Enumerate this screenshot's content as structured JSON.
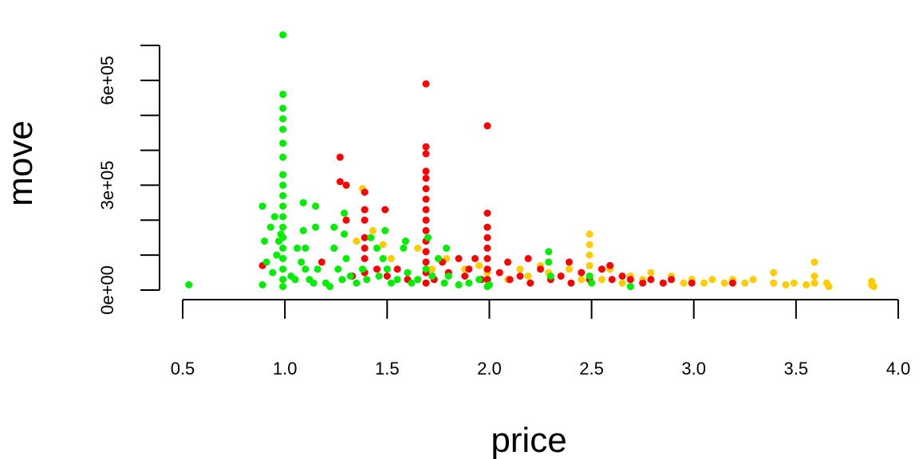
{
  "chart_data": {
    "type": "scatter",
    "title": "",
    "xlabel": "price",
    "ylabel": "move",
    "xlim": [
      0.5,
      4.0
    ],
    "ylim": [
      0,
      700000
    ],
    "x_ticks": [
      0.5,
      1.0,
      1.5,
      2.0,
      2.5,
      3.0,
      3.5,
      4.0
    ],
    "x_tick_labels": [
      "0.5",
      "1.0",
      "1.5",
      "2.0",
      "2.5",
      "3.0",
      "3.5",
      "4.0"
    ],
    "y_ticks": [
      0,
      100000,
      200000,
      300000,
      400000,
      500000,
      600000,
      700000
    ],
    "y_tick_labels": [
      "0e+00",
      "",
      "",
      "3e+05",
      "",
      "",
      "6e+05",
      ""
    ],
    "grid": false,
    "legend": "none",
    "colors": [
      "#00ee00",
      "#ff0000",
      "#ffcc00"
    ],
    "series": [
      {
        "color": "#00ee00",
        "points": [
          [
            0.53,
            15000
          ],
          [
            0.89,
            15000
          ],
          [
            0.89,
            240000
          ],
          [
            0.9,
            140000
          ],
          [
            0.91,
            80000
          ],
          [
            0.93,
            180000
          ],
          [
            0.94,
            50000
          ],
          [
            0.95,
            210000
          ],
          [
            0.96,
            100000
          ],
          [
            0.97,
            140000
          ],
          [
            0.98,
            160000
          ],
          [
            0.99,
            730000
          ],
          [
            0.99,
            560000
          ],
          [
            0.99,
            520000
          ],
          [
            0.99,
            490000
          ],
          [
            0.99,
            460000
          ],
          [
            0.99,
            420000
          ],
          [
            0.99,
            380000
          ],
          [
            0.99,
            330000
          ],
          [
            0.99,
            300000
          ],
          [
            0.99,
            270000
          ],
          [
            0.99,
            240000
          ],
          [
            0.99,
            210000
          ],
          [
            0.99,
            180000
          ],
          [
            0.99,
            150000
          ],
          [
            0.99,
            120000
          ],
          [
            0.99,
            90000
          ],
          [
            0.99,
            60000
          ],
          [
            0.99,
            30000
          ],
          [
            0.99,
            10000
          ],
          [
            1.03,
            40000
          ],
          [
            1.05,
            30000
          ],
          [
            1.06,
            120000
          ],
          [
            1.08,
            80000
          ],
          [
            1.09,
            170000
          ],
          [
            1.09,
            250000
          ],
          [
            1.1,
            120000
          ],
          [
            1.1,
            60000
          ],
          [
            1.12,
            30000
          ],
          [
            1.14,
            20000
          ],
          [
            1.15,
            240000
          ],
          [
            1.15,
            180000
          ],
          [
            1.16,
            60000
          ],
          [
            1.2,
            20000
          ],
          [
            1.22,
            10000
          ],
          [
            1.24,
            180000
          ],
          [
            1.24,
            120000
          ],
          [
            1.26,
            60000
          ],
          [
            1.28,
            30000
          ],
          [
            1.29,
            220000
          ],
          [
            1.29,
            160000
          ],
          [
            1.3,
            90000
          ],
          [
            1.32,
            40000
          ],
          [
            1.35,
            20000
          ],
          [
            1.38,
            60000
          ],
          [
            1.4,
            30000
          ],
          [
            1.42,
            150000
          ],
          [
            1.45,
            120000
          ],
          [
            1.46,
            40000
          ],
          [
            1.48,
            90000
          ],
          [
            1.49,
            170000
          ],
          [
            1.5,
            60000
          ],
          [
            1.52,
            20000
          ],
          [
            1.55,
            30000
          ],
          [
            1.58,
            120000
          ],
          [
            1.59,
            140000
          ],
          [
            1.6,
            50000
          ],
          [
            1.62,
            20000
          ],
          [
            1.65,
            30000
          ],
          [
            1.69,
            60000
          ],
          [
            1.7,
            150000
          ],
          [
            1.72,
            40000
          ],
          [
            1.75,
            90000
          ],
          [
            1.78,
            20000
          ],
          [
            1.79,
            120000
          ],
          [
            1.8,
            40000
          ],
          [
            1.85,
            15000
          ],
          [
            1.9,
            20000
          ],
          [
            1.95,
            30000
          ],
          [
            1.99,
            10000
          ],
          [
            2.0,
            15000
          ],
          [
            2.29,
            110000
          ],
          [
            2.29,
            80000
          ],
          [
            2.3,
            40000
          ],
          [
            2.49,
            40000
          ],
          [
            2.5,
            20000
          ],
          [
            2.69,
            10000
          ]
        ]
      },
      {
        "color": "#ff0000",
        "points": [
          [
            0.89,
            70000
          ],
          [
            1.18,
            80000
          ],
          [
            1.27,
            380000
          ],
          [
            1.27,
            310000
          ],
          [
            1.3,
            300000
          ],
          [
            1.3,
            200000
          ],
          [
            1.33,
            40000
          ],
          [
            1.39,
            280000
          ],
          [
            1.39,
            230000
          ],
          [
            1.39,
            200000
          ],
          [
            1.39,
            150000
          ],
          [
            1.39,
            120000
          ],
          [
            1.39,
            90000
          ],
          [
            1.39,
            50000
          ],
          [
            1.45,
            60000
          ],
          [
            1.49,
            230000
          ],
          [
            1.5,
            40000
          ],
          [
            1.55,
            60000
          ],
          [
            1.6,
            30000
          ],
          [
            1.69,
            590000
          ],
          [
            1.69,
            410000
          ],
          [
            1.69,
            390000
          ],
          [
            1.69,
            340000
          ],
          [
            1.69,
            320000
          ],
          [
            1.69,
            290000
          ],
          [
            1.69,
            260000
          ],
          [
            1.69,
            230000
          ],
          [
            1.69,
            200000
          ],
          [
            1.69,
            170000
          ],
          [
            1.69,
            140000
          ],
          [
            1.69,
            110000
          ],
          [
            1.69,
            80000
          ],
          [
            1.69,
            50000
          ],
          [
            1.69,
            20000
          ],
          [
            1.73,
            30000
          ],
          [
            1.77,
            80000
          ],
          [
            1.8,
            50000
          ],
          [
            1.85,
            90000
          ],
          [
            1.88,
            40000
          ],
          [
            1.9,
            60000
          ],
          [
            1.93,
            90000
          ],
          [
            1.96,
            30000
          ],
          [
            1.99,
            470000
          ],
          [
            1.99,
            220000
          ],
          [
            1.99,
            180000
          ],
          [
            1.99,
            150000
          ],
          [
            1.99,
            120000
          ],
          [
            1.99,
            90000
          ],
          [
            1.99,
            60000
          ],
          [
            1.99,
            30000
          ],
          [
            2.05,
            50000
          ],
          [
            2.09,
            80000
          ],
          [
            2.1,
            30000
          ],
          [
            2.15,
            40000
          ],
          [
            2.19,
            90000
          ],
          [
            2.2,
            20000
          ],
          [
            2.25,
            60000
          ],
          [
            2.3,
            30000
          ],
          [
            2.35,
            40000
          ],
          [
            2.39,
            80000
          ],
          [
            2.4,
            20000
          ],
          [
            2.45,
            50000
          ],
          [
            2.49,
            30000
          ],
          [
            2.55,
            60000
          ],
          [
            2.59,
            70000
          ],
          [
            2.6,
            30000
          ],
          [
            2.65,
            40000
          ],
          [
            2.69,
            30000
          ],
          [
            2.75,
            20000
          ],
          [
            2.79,
            30000
          ],
          [
            2.85,
            20000
          ],
          [
            2.89,
            30000
          ],
          [
            2.99,
            20000
          ],
          [
            3.19,
            20000
          ]
        ]
      },
      {
        "color": "#ffcc00",
        "points": [
          [
            1.38,
            290000
          ],
          [
            1.39,
            230000
          ],
          [
            1.35,
            140000
          ],
          [
            1.43,
            170000
          ],
          [
            1.48,
            130000
          ],
          [
            1.52,
            90000
          ],
          [
            1.65,
            120000
          ],
          [
            1.72,
            60000
          ],
          [
            1.79,
            90000
          ],
          [
            1.88,
            60000
          ],
          [
            1.95,
            70000
          ],
          [
            1.99,
            50000
          ],
          [
            2.09,
            30000
          ],
          [
            2.15,
            60000
          ],
          [
            2.19,
            40000
          ],
          [
            2.25,
            70000
          ],
          [
            2.29,
            50000
          ],
          [
            2.35,
            40000
          ],
          [
            2.39,
            60000
          ],
          [
            2.45,
            30000
          ],
          [
            2.49,
            160000
          ],
          [
            2.49,
            130000
          ],
          [
            2.49,
            100000
          ],
          [
            2.49,
            70000
          ],
          [
            2.49,
            40000
          ],
          [
            2.55,
            30000
          ],
          [
            2.59,
            60000
          ],
          [
            2.65,
            20000
          ],
          [
            2.69,
            40000
          ],
          [
            2.75,
            30000
          ],
          [
            2.79,
            50000
          ],
          [
            2.85,
            20000
          ],
          [
            2.89,
            40000
          ],
          [
            2.95,
            20000
          ],
          [
            2.99,
            30000
          ],
          [
            3.05,
            20000
          ],
          [
            3.09,
            30000
          ],
          [
            3.15,
            20000
          ],
          [
            3.19,
            30000
          ],
          [
            3.25,
            20000
          ],
          [
            3.29,
            30000
          ],
          [
            3.39,
            50000
          ],
          [
            3.39,
            20000
          ],
          [
            3.45,
            15000
          ],
          [
            3.49,
            20000
          ],
          [
            3.55,
            15000
          ],
          [
            3.59,
            80000
          ],
          [
            3.59,
            40000
          ],
          [
            3.59,
            20000
          ],
          [
            3.65,
            20000
          ],
          [
            3.66,
            10000
          ],
          [
            3.87,
            25000
          ],
          [
            3.87,
            15000
          ],
          [
            3.88,
            10000
          ]
        ]
      }
    ]
  }
}
